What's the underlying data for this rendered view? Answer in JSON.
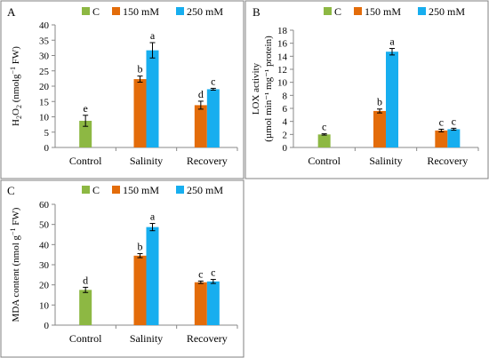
{
  "legend": {
    "series": [
      "C",
      "150 mM",
      "250 mM"
    ]
  },
  "colors": {
    "C": "#8db843",
    "150 mM": "#e36c0a",
    "250 mM": "#17aeef",
    "border": "#808080",
    "axis": "#888888"
  },
  "chart_data": [
    {
      "panel_label": "A",
      "type": "bar",
      "ylabel_parts": [
        "H",
        "2",
        "O",
        "2",
        " (nmolg",
        "−1",
        " FW)"
      ],
      "categories": [
        "Control",
        "Salinity",
        "Recovery"
      ],
      "ylim": [
        0,
        40
      ],
      "yticks": [
        0,
        5,
        10,
        15,
        20,
        25,
        30,
        35,
        40
      ],
      "series": [
        {
          "name": "C",
          "values": [
            8.7,
            null,
            null
          ],
          "errors": [
            1.8,
            null,
            null
          ],
          "letters": [
            "e",
            null,
            null
          ]
        },
        {
          "name": "150 mM",
          "values": [
            null,
            22.3,
            13.8
          ],
          "errors": [
            null,
            1.0,
            1.3
          ],
          "letters": [
            null,
            "b",
            "d"
          ]
        },
        {
          "name": "250 mM",
          "values": [
            null,
            31.7,
            19.0
          ],
          "errors": [
            null,
            2.5,
            0.3
          ],
          "letters": [
            null,
            "a",
            "c"
          ]
        }
      ]
    },
    {
      "panel_label": "B",
      "type": "bar",
      "ylabel_lines": [
        "LOX activity",
        "(µmol min⁻¹ mg⁻¹ protein)"
      ],
      "categories": [
        "Control",
        "Salinity",
        "Recovery"
      ],
      "ylim": [
        0,
        18
      ],
      "yticks": [
        0,
        2,
        4,
        6,
        8,
        10,
        12,
        14,
        16,
        18
      ],
      "series": [
        {
          "name": "C",
          "values": [
            2.0,
            null,
            null
          ],
          "errors": [
            0.1,
            null,
            null
          ],
          "letters": [
            "c",
            null,
            null
          ]
        },
        {
          "name": "150 mM",
          "values": [
            null,
            5.6,
            2.6
          ],
          "errors": [
            null,
            0.3,
            0.2
          ],
          "letters": [
            null,
            "b",
            "c"
          ]
        },
        {
          "name": "250 mM",
          "values": [
            null,
            14.7,
            2.8
          ],
          "errors": [
            null,
            0.5,
            0.15
          ],
          "letters": [
            null,
            "a",
            "c"
          ]
        }
      ]
    },
    {
      "panel_label": "C",
      "type": "bar",
      "ylabel_parts": [
        "MDA content (nmol g",
        "−1",
        " FW)"
      ],
      "categories": [
        "Control",
        "Salinity",
        "Recovery"
      ],
      "ylim": [
        0,
        60
      ],
      "yticks": [
        0,
        10,
        20,
        30,
        40,
        50,
        60
      ],
      "series": [
        {
          "name": "C",
          "values": [
            17.5,
            null,
            null
          ],
          "errors": [
            1.3,
            null,
            null
          ],
          "letters": [
            "d",
            null,
            null
          ]
        },
        {
          "name": "150 mM",
          "values": [
            null,
            34.5,
            21.3
          ],
          "errors": [
            null,
            1.0,
            0.6
          ],
          "letters": [
            null,
            "b",
            "c"
          ]
        },
        {
          "name": "250 mM",
          "values": [
            null,
            48.7,
            21.7
          ],
          "errors": [
            null,
            1.8,
            1.0
          ],
          "letters": [
            null,
            "a",
            "c"
          ]
        }
      ]
    }
  ]
}
